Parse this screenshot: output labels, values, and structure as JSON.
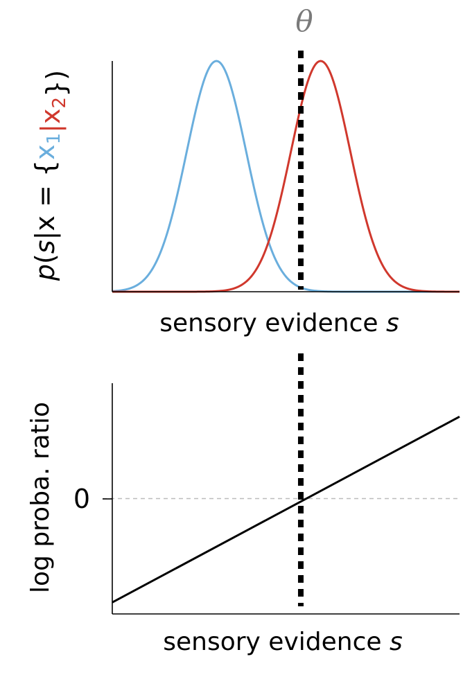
{
  "chart_data": [
    {
      "type": "line",
      "xlabel": "sensory evidence",
      "xlabel_var": "s",
      "ylabel": {
        "parts": [
          {
            "text": "p",
            "italic": true
          },
          {
            "text": "(",
            "italic": false
          },
          {
            "text": "s",
            "italic": true
          },
          {
            "text": "|",
            "italic": false
          },
          {
            "text": "x",
            "italic": false
          },
          {
            "text": " = {",
            "italic": false
          },
          {
            "text": "x",
            "italic": false,
            "series": 0
          },
          {
            "text": "1",
            "italic": false,
            "series": 0,
            "sub": true
          },
          {
            "text": "|",
            "italic": false,
            "series": 1
          },
          {
            "text": "x",
            "italic": false,
            "series": 1
          },
          {
            "text": "2",
            "italic": false,
            "series": 1,
            "sub": true
          },
          {
            "text": "})",
            "italic": false
          }
        ]
      },
      "threshold_label": "θ",
      "threshold": 0.3,
      "xlim": [
        -3.5,
        3.5
      ],
      "ylim": [
        0,
        1
      ],
      "series": [
        {
          "mu": -1.4,
          "sigma": 0.6,
          "color": "#6aaedd"
        },
        {
          "mu": 0.7,
          "sigma": 0.6,
          "color": "#d0382d"
        }
      ]
    },
    {
      "type": "line",
      "xlabel": "sensory evidence",
      "xlabel_var": "s",
      "ylabel": "log proba. ratio",
      "yticks": [
        {
          "value": 0,
          "label": "0"
        }
      ],
      "threshold": 0.3,
      "xlim": [
        -3.5,
        3.5
      ],
      "ylim": [
        -1,
        1
      ],
      "x": [
        -3.5,
        3.5
      ],
      "y": [
        -0.9,
        0.71
      ],
      "zero_line_color": "#bbbbbb",
      "line_color": "#000000"
    }
  ]
}
